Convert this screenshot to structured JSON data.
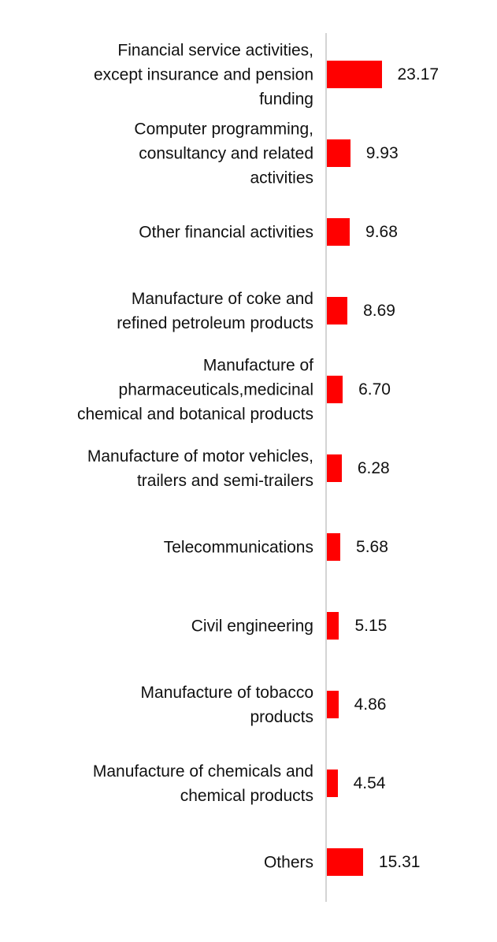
{
  "colors": {
    "bar": "#ff0000",
    "axis": "#d4d4d4",
    "text": "#111111"
  },
  "chart_data": {
    "type": "bar",
    "orientation": "horizontal",
    "title": "",
    "xlabel": "",
    "ylabel": "",
    "grid": false,
    "categories": [
      "Financial service activities,\nexcept insurance and pension\nfunding",
      "Computer programming,\nconsultancy and related\nactivities",
      "Other financial activities",
      "Manufacture of coke and\nrefined petroleum products",
      "Manufacture of\npharmaceuticals,medicinal\nchemical and botanical products",
      "Manufacture of motor vehicles,\ntrailers and semi-trailers",
      "Telecommunications",
      "Civil engineering",
      "Manufacture of tobacco\nproducts",
      "Manufacture of chemicals and\nchemical products",
      "Others"
    ],
    "values": [
      23.17,
      9.93,
      9.68,
      8.69,
      6.7,
      6.28,
      5.68,
      5.15,
      4.86,
      4.54,
      15.31
    ],
    "value_labels": [
      "23.17",
      "9.93",
      "9.68",
      "8.69",
      "6.70",
      "6.28",
      "5.68",
      "5.15",
      "4.86",
      "4.54",
      "15.31"
    ]
  }
}
